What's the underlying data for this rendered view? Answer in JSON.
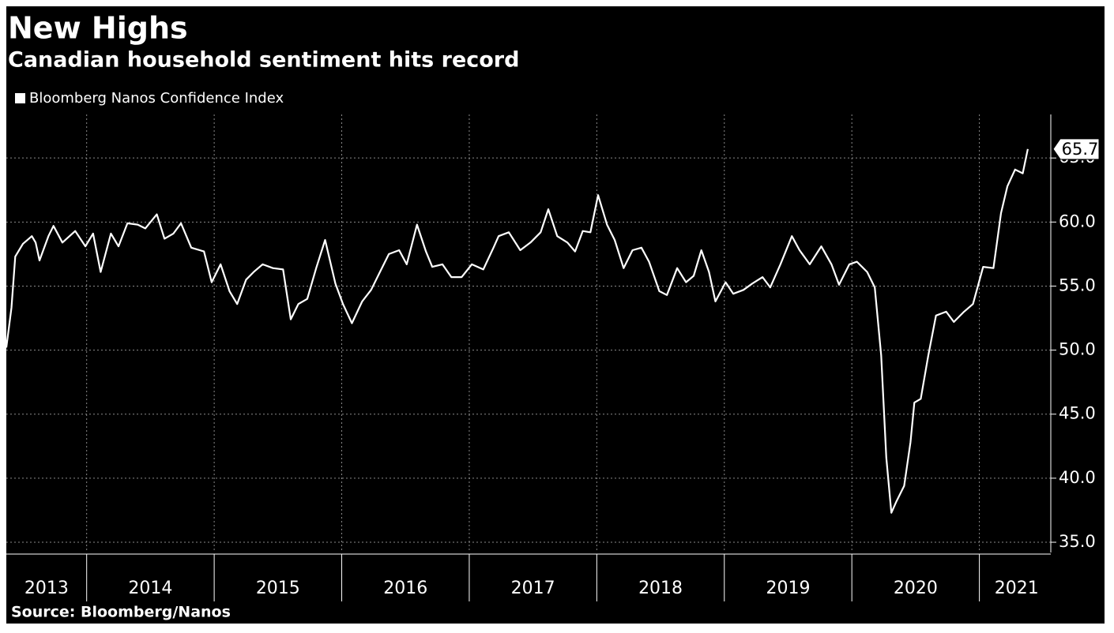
{
  "chart_data": {
    "type": "line",
    "title": "New Highs",
    "subtitle": "Canadian household sentiment hits record",
    "source": "Source: Bloomberg/Nanos",
    "xlim": [
      2013.37,
      2021.56
    ],
    "xticks": [
      2014,
      2015,
      2016,
      2017,
      2018,
      2019,
      2020,
      2021
    ],
    "year_labels": [
      "2013",
      "2014",
      "2015",
      "2016",
      "2017",
      "2018",
      "2019",
      "2020",
      "2021"
    ],
    "ylim": [
      34.2,
      68.4
    ],
    "yticks": [
      {
        "value": 35,
        "label": "35.0"
      },
      {
        "value": 40,
        "label": "40.0"
      },
      {
        "value": 45,
        "label": "45.0"
      },
      {
        "value": 50,
        "label": "50.0"
      },
      {
        "value": 55,
        "label": "55.0"
      },
      {
        "value": 60,
        "label": "60.0"
      },
      {
        "value": 65,
        "label": "65.0"
      }
    ],
    "y_axis_side": "right",
    "grid": true,
    "label_last": true,
    "legend": "top-left",
    "x": [
      2013.37,
      2013.41,
      2013.44,
      2013.5,
      2013.57,
      2013.6,
      2013.63,
      2013.7,
      2013.74,
      2013.81,
      2013.91,
      2013.99,
      2014.05,
      2014.11,
      2014.19,
      2014.25,
      2014.32,
      2014.4,
      2014.46,
      2014.55,
      2014.61,
      2014.68,
      2014.74,
      2014.82,
      2014.92,
      2014.98,
      2015.05,
      2015.12,
      2015.18,
      2015.25,
      2015.31,
      2015.38,
      2015.46,
      2015.54,
      2015.6,
      2015.66,
      2015.73,
      2015.8,
      2015.87,
      2015.95,
      2016.01,
      2016.08,
      2016.16,
      2016.23,
      2016.3,
      2016.37,
      2016.45,
      2016.51,
      2016.59,
      2016.66,
      2016.71,
      2016.79,
      2016.86,
      2016.94,
      2017.02,
      2017.11,
      2017.19,
      2017.23,
      2017.31,
      2017.4,
      2017.48,
      2017.56,
      2017.62,
      2017.69,
      2017.77,
      2017.83,
      2017.89,
      2017.95,
      2018.01,
      2018.08,
      2018.14,
      2018.21,
      2018.28,
      2018.35,
      2018.41,
      2018.49,
      2018.55,
      2018.63,
      2018.7,
      2018.76,
      2018.82,
      2018.88,
      2018.93,
      2019.01,
      2019.07,
      2019.15,
      2019.22,
      2019.3,
      2019.36,
      2019.44,
      2019.53,
      2019.59,
      2019.67,
      2019.76,
      2019.84,
      2019.9,
      2019.98,
      2020.04,
      2020.12,
      2020.18,
      2020.23,
      2020.27,
      2020.31,
      2020.35,
      2020.41,
      2020.46,
      2020.49,
      2020.54,
      2020.6,
      2020.66,
      2020.74,
      2020.8,
      2020.88,
      2020.95,
      2021.03,
      2021.11,
      2021.17,
      2021.22,
      2021.28,
      2021.34,
      2021.38
    ],
    "series": [
      {
        "name": "Bloomberg Nanos Confidence Index",
        "color": "#ffffff",
        "values": [
          50.2,
          53.3,
          57.3,
          58.3,
          58.9,
          58.4,
          57.0,
          58.9,
          59.7,
          58.4,
          59.3,
          58.1,
          59.1,
          56.1,
          59.1,
          58.1,
          59.9,
          59.8,
          59.5,
          60.6,
          58.7,
          59.1,
          59.9,
          58.0,
          57.7,
          55.3,
          56.7,
          54.6,
          53.6,
          55.5,
          56.1,
          56.7,
          56.4,
          56.3,
          52.4,
          53.6,
          54.0,
          56.4,
          58.6,
          55.2,
          53.6,
          52.1,
          53.8,
          54.7,
          56.1,
          57.5,
          57.8,
          56.7,
          59.8,
          57.7,
          56.5,
          56.7,
          55.7,
          55.7,
          56.7,
          56.3,
          58.0,
          58.9,
          59.2,
          57.8,
          58.4,
          59.2,
          61.0,
          58.9,
          58.4,
          57.7,
          59.3,
          59.2,
          62.1,
          59.8,
          58.6,
          56.4,
          57.8,
          58.0,
          56.9,
          54.6,
          54.3,
          56.4,
          55.3,
          55.8,
          57.8,
          56.1,
          53.8,
          55.3,
          54.4,
          54.7,
          55.2,
          55.7,
          54.9,
          56.7,
          58.9,
          57.8,
          56.7,
          58.1,
          56.7,
          55.1,
          56.7,
          56.9,
          56.1,
          54.9,
          49.6,
          41.6,
          37.3,
          38.2,
          39.4,
          42.8,
          45.9,
          46.2,
          49.6,
          52.7,
          53.0,
          52.2,
          53.0,
          53.6,
          56.5,
          56.4,
          60.7,
          62.8,
          64.1,
          63.8,
          65.7
        ]
      }
    ]
  }
}
